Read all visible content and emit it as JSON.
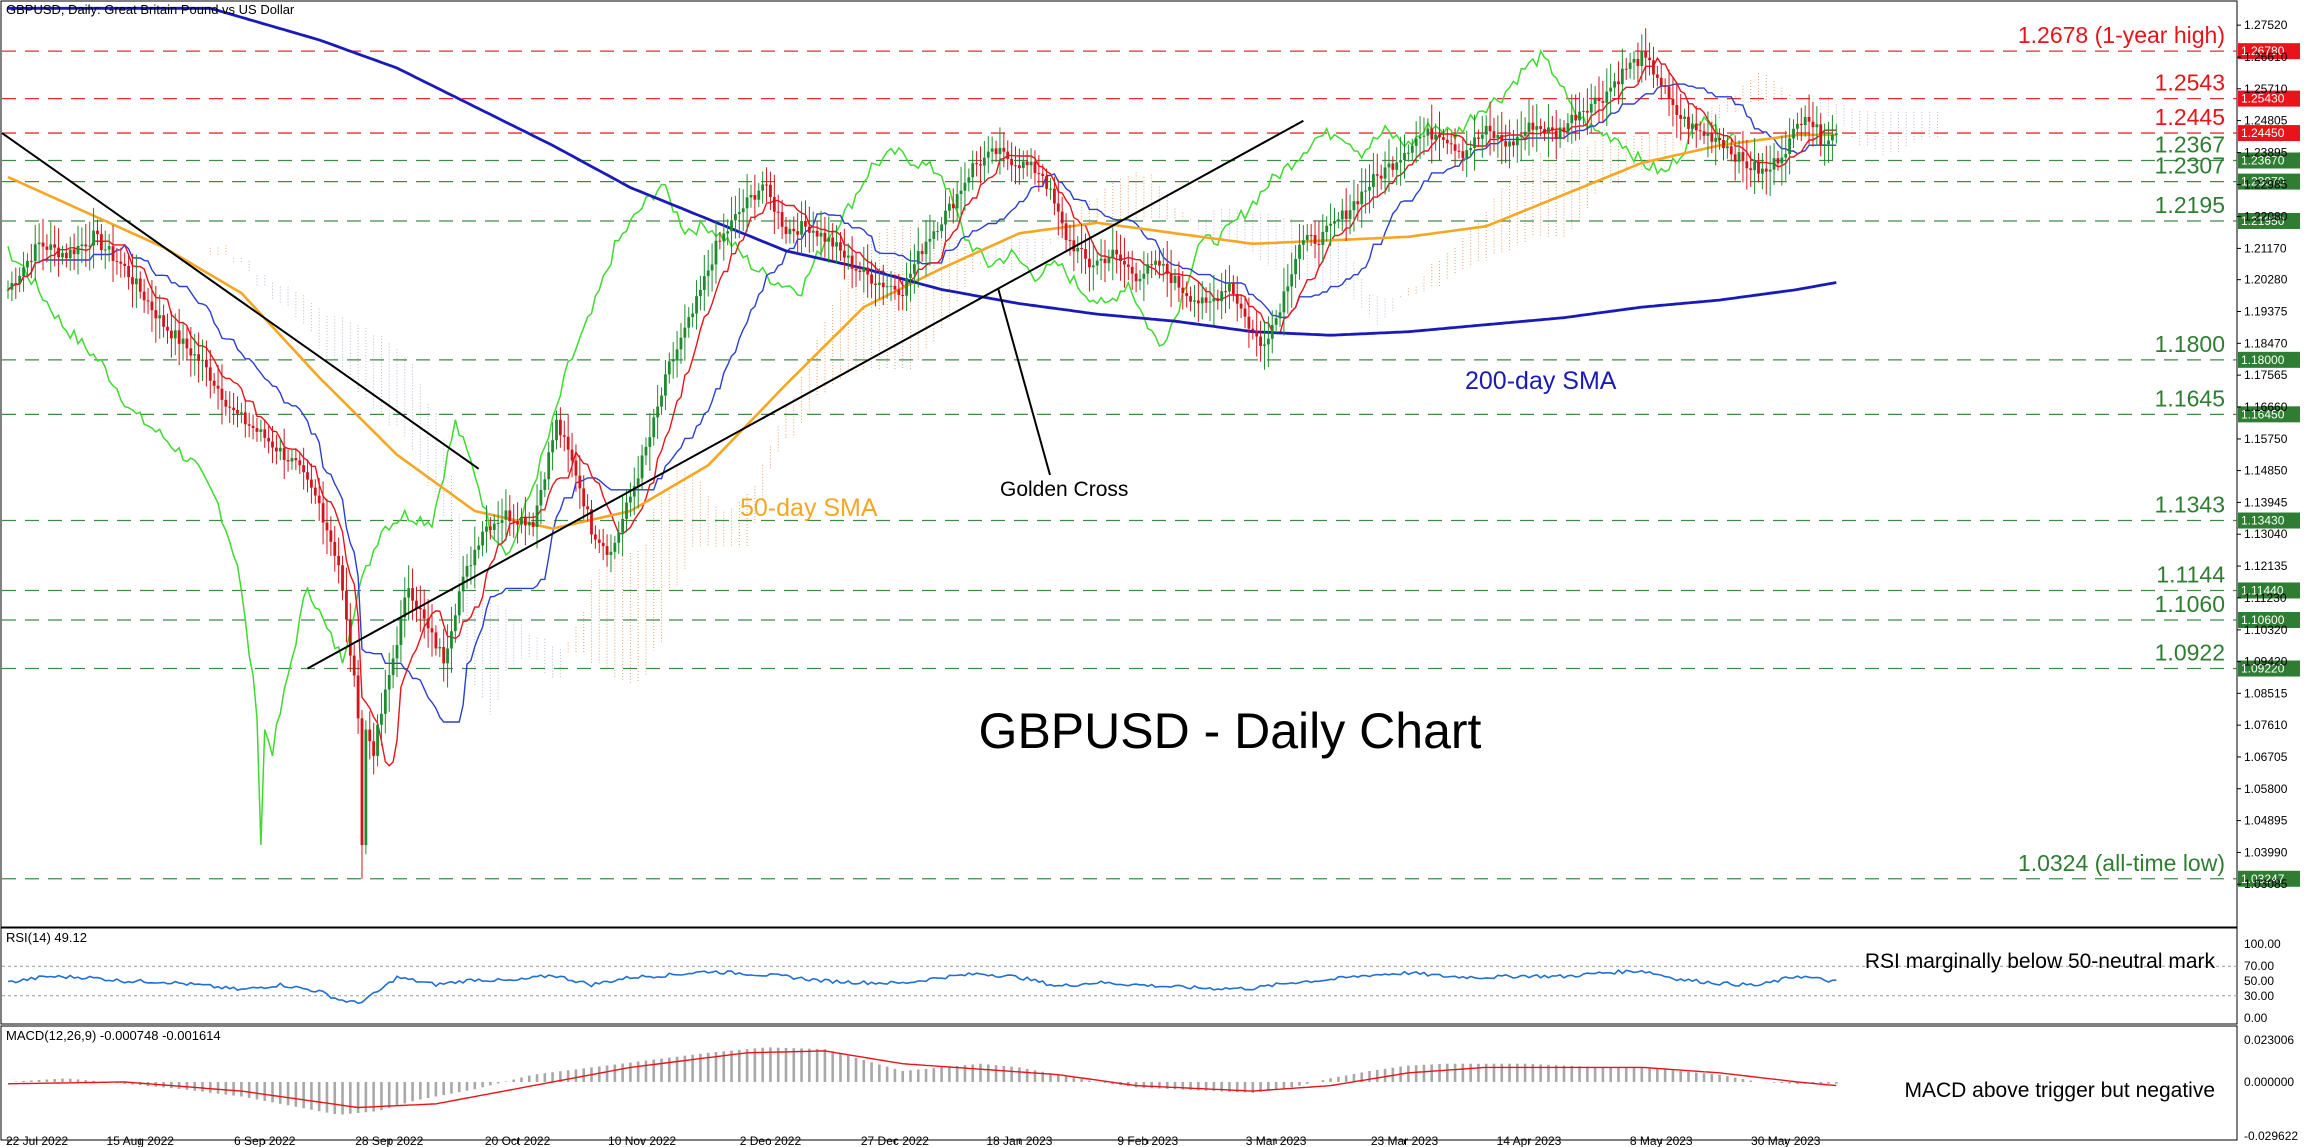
{
  "chart_data": [
    {
      "type": "candlestick",
      "panel": "price",
      "header": "GBPUSD, Daily:  Great Britain Pound vs US Dollar",
      "title": "GBPUSD - Daily Chart",
      "y_range": [
        1.0275,
        1.2778
      ],
      "y_ticks": [
        "1.27520",
        "1.26610",
        "1.25710",
        "1.24805",
        "1.23895",
        "1.22985",
        "1.22080",
        "1.21170",
        "1.20280",
        "1.19375",
        "1.18470",
        "1.17565",
        "1.16660",
        "1.15750",
        "1.14850",
        "1.13945",
        "1.13040",
        "1.12135",
        "1.11230",
        "1.10320",
        "1.09420",
        "1.08515",
        "1.07610",
        "1.06705",
        "1.05800",
        "1.04895",
        "1.03990",
        "1.03085"
      ],
      "x_labels": [
        "22 Jul 2022",
        "15 Aug 2022",
        "6 Sep 2022",
        "28 Sep 2022",
        "20 Oct 2022",
        "10 Nov 2022",
        "2 Dec 2022",
        "27 Dec 2022",
        "18 Jan 2023",
        "9 Feb 2023",
        "3 Mar 2023",
        "23 Mar 2023",
        "14 Apr 2023",
        "8 May 2023",
        "30 May 2023"
      ],
      "levels": [
        {
          "value": 1.2678,
          "label": "1.2678 (1-year high)",
          "tag": "1.26780",
          "color": "#e8141a"
        },
        {
          "value": 1.2543,
          "label": "1.2543",
          "tag": "1.25430",
          "color": "#e8141a"
        },
        {
          "value": 1.2445,
          "label": "1.2445",
          "tag": "1.24450",
          "color": "#e8141a"
        },
        {
          "value": 1.2367,
          "label": "1.2367",
          "tag": "1.23670",
          "color": "#2e7d32"
        },
        {
          "value": 1.2307,
          "label": "1.2307",
          "tag": "1.23070",
          "color": "#2e7d32"
        },
        {
          "value": 1.2195,
          "label": "1.2195",
          "tag": "1.21950",
          "color": "#2e7d32"
        },
        {
          "value": 1.18,
          "label": "1.1800",
          "tag": "1.18000",
          "color": "#2e7d32"
        },
        {
          "value": 1.1645,
          "label": "1.1645",
          "tag": "1.16450",
          "color": "#2e7d32"
        },
        {
          "value": 1.1343,
          "label": "1.1343",
          "tag": "1.13430",
          "color": "#2e7d32"
        },
        {
          "value": 1.1144,
          "label": "1.1144",
          "tag": "1.11440",
          "color": "#2e7d32"
        },
        {
          "value": 1.106,
          "label": "1.1060",
          "tag": "1.10600",
          "color": "#2e7d32"
        },
        {
          "value": 1.0922,
          "label": "1.0922",
          "tag": "1.09220",
          "color": "#2e7d32"
        },
        {
          "value": 1.0324,
          "label": "1.0324 (all-time low)",
          "tag": "1.03247",
          "color": "#2e7d32"
        }
      ],
      "price_waypoints": [
        [
          0,
          1.2
        ],
        [
          8,
          1.213
        ],
        [
          15,
          1.21
        ],
        [
          22,
          1.215
        ],
        [
          30,
          1.206
        ],
        [
          40,
          1.19
        ],
        [
          50,
          1.179
        ],
        [
          58,
          1.165
        ],
        [
          66,
          1.158
        ],
        [
          74,
          1.15
        ],
        [
          80,
          1.139
        ],
        [
          85,
          1.122
        ],
        [
          90,
          1.08
        ],
        [
          94,
          1.069
        ],
        [
          98,
          1.09
        ],
        [
          103,
          1.116
        ],
        [
          108,
          1.103
        ],
        [
          112,
          1.095
        ],
        [
          116,
          1.114
        ],
        [
          122,
          1.132
        ],
        [
          128,
          1.136
        ],
        [
          135,
          1.134
        ],
        [
          141,
          1.162
        ],
        [
          146,
          1.148
        ],
        [
          150,
          1.132
        ],
        [
          155,
          1.125
        ],
        [
          160,
          1.141
        ],
        [
          165,
          1.158
        ],
        [
          170,
          1.178
        ],
        [
          176,
          1.193
        ],
        [
          182,
          1.212
        ],
        [
          188,
          1.222
        ],
        [
          194,
          1.23
        ],
        [
          200,
          1.217
        ],
        [
          206,
          1.218
        ],
        [
          212,
          1.213
        ],
        [
          218,
          1.206
        ],
        [
          224,
          1.202
        ],
        [
          230,
          1.2
        ],
        [
          236,
          1.214
        ],
        [
          242,
          1.223
        ],
        [
          248,
          1.235
        ],
        [
          254,
          1.239
        ],
        [
          260,
          1.236
        ],
        [
          266,
          1.233
        ],
        [
          272,
          1.215
        ],
        [
          278,
          1.207
        ],
        [
          284,
          1.21
        ],
        [
          290,
          1.204
        ],
        [
          296,
          1.207
        ],
        [
          302,
          1.2
        ],
        [
          308,
          1.195
        ],
        [
          314,
          1.202
        ],
        [
          318,
          1.192
        ],
        [
          322,
          1.184
        ],
        [
          326,
          1.192
        ],
        [
          332,
          1.213
        ],
        [
          338,
          1.215
        ],
        [
          344,
          1.222
        ],
        [
          350,
          1.23
        ],
        [
          356,
          1.236
        ],
        [
          362,
          1.243
        ],
        [
          368,
          1.245
        ],
        [
          374,
          1.239
        ],
        [
          380,
          1.245
        ],
        [
          386,
          1.241
        ],
        [
          392,
          1.247
        ],
        [
          398,
          1.244
        ],
        [
          404,
          1.251
        ],
        [
          410,
          1.255
        ],
        [
          416,
          1.263
        ],
        [
          420,
          1.266
        ],
        [
          424,
          1.261
        ],
        [
          428,
          1.251
        ],
        [
          434,
          1.245
        ],
        [
          440,
          1.243
        ],
        [
          446,
          1.236
        ],
        [
          452,
          1.233
        ],
        [
          458,
          1.242
        ],
        [
          462,
          1.251
        ],
        [
          466,
          1.243
        ],
        [
          470,
          1.244
        ]
      ],
      "sma50_waypoints": [
        [
          0,
          1.232
        ],
        [
          20,
          1.222
        ],
        [
          40,
          1.212
        ],
        [
          60,
          1.199
        ],
        [
          80,
          1.175
        ],
        [
          100,
          1.153
        ],
        [
          120,
          1.137
        ],
        [
          140,
          1.132
        ],
        [
          160,
          1.137
        ],
        [
          180,
          1.15
        ],
        [
          200,
          1.173
        ],
        [
          220,
          1.195
        ],
        [
          240,
          1.206
        ],
        [
          260,
          1.216
        ],
        [
          280,
          1.219
        ],
        [
          300,
          1.216
        ],
        [
          320,
          1.213
        ],
        [
          340,
          1.214
        ],
        [
          360,
          1.215
        ],
        [
          380,
          1.218
        ],
        [
          400,
          1.227
        ],
        [
          420,
          1.236
        ],
        [
          440,
          1.241
        ],
        [
          460,
          1.244
        ],
        [
          470,
          1.244
        ]
      ],
      "sma200_waypoints": [
        [
          52,
          1.28
        ],
        [
          80,
          1.271
        ],
        [
          100,
          1.263
        ],
        [
          120,
          1.252
        ],
        [
          140,
          1.241
        ],
        [
          160,
          1.229
        ],
        [
          180,
          1.22
        ],
        [
          200,
          1.211
        ],
        [
          220,
          1.206
        ],
        [
          240,
          1.2
        ],
        [
          260,
          1.196
        ],
        [
          280,
          1.193
        ],
        [
          300,
          1.191
        ],
        [
          320,
          1.188
        ],
        [
          340,
          1.187
        ],
        [
          360,
          1.188
        ],
        [
          380,
          1.19
        ],
        [
          400,
          1.192
        ],
        [
          420,
          1.195
        ],
        [
          440,
          1.197
        ],
        [
          460,
          1.2
        ],
        [
          470,
          1.202
        ]
      ],
      "annotations": [
        {
          "text": "200-day SMA",
          "color": "#1a1ab8"
        },
        {
          "text": "50-day SMA",
          "color": "#f5a623"
        },
        {
          "text": "Golden Cross",
          "color": "#000000"
        }
      ]
    },
    {
      "type": "line",
      "panel": "rsi",
      "header": "RSI(14) 49.12",
      "y_range": [
        0,
        100
      ],
      "y_ticks": [
        "100.00",
        "70.00",
        "50.00",
        "30.00",
        "0.00"
      ],
      "annotation": "RSI marginally below 50-neutral mark",
      "rsi_waypoints": [
        [
          0,
          48
        ],
        [
          10,
          56
        ],
        [
          20,
          55
        ],
        [
          30,
          50
        ],
        [
          40,
          49
        ],
        [
          50,
          44
        ],
        [
          60,
          38
        ],
        [
          70,
          45
        ],
        [
          80,
          36
        ],
        [
          85,
          25
        ],
        [
          90,
          20
        ],
        [
          95,
          35
        ],
        [
          100,
          55
        ],
        [
          110,
          45
        ],
        [
          120,
          52
        ],
        [
          130,
          50
        ],
        [
          140,
          58
        ],
        [
          150,
          45
        ],
        [
          160,
          55
        ],
        [
          170,
          58
        ],
        [
          180,
          63
        ],
        [
          190,
          60
        ],
        [
          200,
          56
        ],
        [
          210,
          50
        ],
        [
          220,
          48
        ],
        [
          230,
          47
        ],
        [
          240,
          55
        ],
        [
          250,
          60
        ],
        [
          260,
          55
        ],
        [
          270,
          43
        ],
        [
          280,
          48
        ],
        [
          290,
          45
        ],
        [
          300,
          42
        ],
        [
          310,
          40
        ],
        [
          320,
          40
        ],
        [
          330,
          48
        ],
        [
          340,
          52
        ],
        [
          350,
          58
        ],
        [
          360,
          61
        ],
        [
          370,
          56
        ],
        [
          380,
          55
        ],
        [
          390,
          57
        ],
        [
          400,
          56
        ],
        [
          410,
          61
        ],
        [
          420,
          64
        ],
        [
          430,
          52
        ],
        [
          440,
          47
        ],
        [
          450,
          44
        ],
        [
          460,
          57
        ],
        [
          470,
          49
        ]
      ],
      "color": "#1f6fd6"
    },
    {
      "type": "bar",
      "panel": "macd",
      "header": "MACD(12,26,9) -0.000748 -0.001614",
      "y_ticks": [
        "0.023006",
        "0.000000",
        "-0.029622"
      ],
      "annotation": "MACD above trigger but negative",
      "hist_waypoints": [
        [
          0,
          0.0
        ],
        [
          15,
          0.002
        ],
        [
          30,
          -0.001
        ],
        [
          45,
          -0.004
        ],
        [
          60,
          -0.008
        ],
        [
          75,
          -0.014
        ],
        [
          85,
          -0.018
        ],
        [
          95,
          -0.016
        ],
        [
          105,
          -0.01
        ],
        [
          120,
          -0.004
        ],
        [
          135,
          0.004
        ],
        [
          150,
          0.008
        ],
        [
          165,
          0.012
        ],
        [
          180,
          0.016
        ],
        [
          195,
          0.019
        ],
        [
          210,
          0.018
        ],
        [
          220,
          0.012
        ],
        [
          230,
          0.006
        ],
        [
          240,
          0.008
        ],
        [
          250,
          0.01
        ],
        [
          260,
          0.008
        ],
        [
          270,
          0.004
        ],
        [
          280,
          0.0
        ],
        [
          290,
          -0.003
        ],
        [
          300,
          -0.004
        ],
        [
          310,
          -0.005
        ],
        [
          320,
          -0.006
        ],
        [
          330,
          -0.003
        ],
        [
          340,
          0.002
        ],
        [
          350,
          0.006
        ],
        [
          360,
          0.009
        ],
        [
          370,
          0.01
        ],
        [
          380,
          0.01
        ],
        [
          390,
          0.01
        ],
        [
          400,
          0.009
        ],
        [
          410,
          0.008
        ],
        [
          420,
          0.008
        ],
        [
          430,
          0.006
        ],
        [
          440,
          0.004
        ],
        [
          450,
          0.0
        ],
        [
          460,
          -0.001
        ],
        [
          470,
          -0.001
        ]
      ],
      "signal_waypoints": [
        [
          0,
          -0.001
        ],
        [
          30,
          0.0
        ],
        [
          60,
          -0.005
        ],
        [
          90,
          -0.014
        ],
        [
          110,
          -0.012
        ],
        [
          130,
          -0.004
        ],
        [
          160,
          0.008
        ],
        [
          190,
          0.016
        ],
        [
          210,
          0.017
        ],
        [
          230,
          0.01
        ],
        [
          250,
          0.007
        ],
        [
          270,
          0.004
        ],
        [
          290,
          -0.002
        ],
        [
          320,
          -0.005
        ],
        [
          340,
          -0.002
        ],
        [
          360,
          0.005
        ],
        [
          380,
          0.008
        ],
        [
          400,
          0.008
        ],
        [
          420,
          0.008
        ],
        [
          440,
          0.005
        ],
        [
          460,
          0.0
        ],
        [
          470,
          -0.002
        ]
      ]
    }
  ],
  "colors": {
    "bull": "#1e8c2e",
    "bear": "#d4141a",
    "tenkan": "#e8141a",
    "kijun": "#2a3fd1",
    "chikou": "#3ddb2e",
    "sma50": "#f5a623",
    "sma200": "#1a1ab8"
  }
}
